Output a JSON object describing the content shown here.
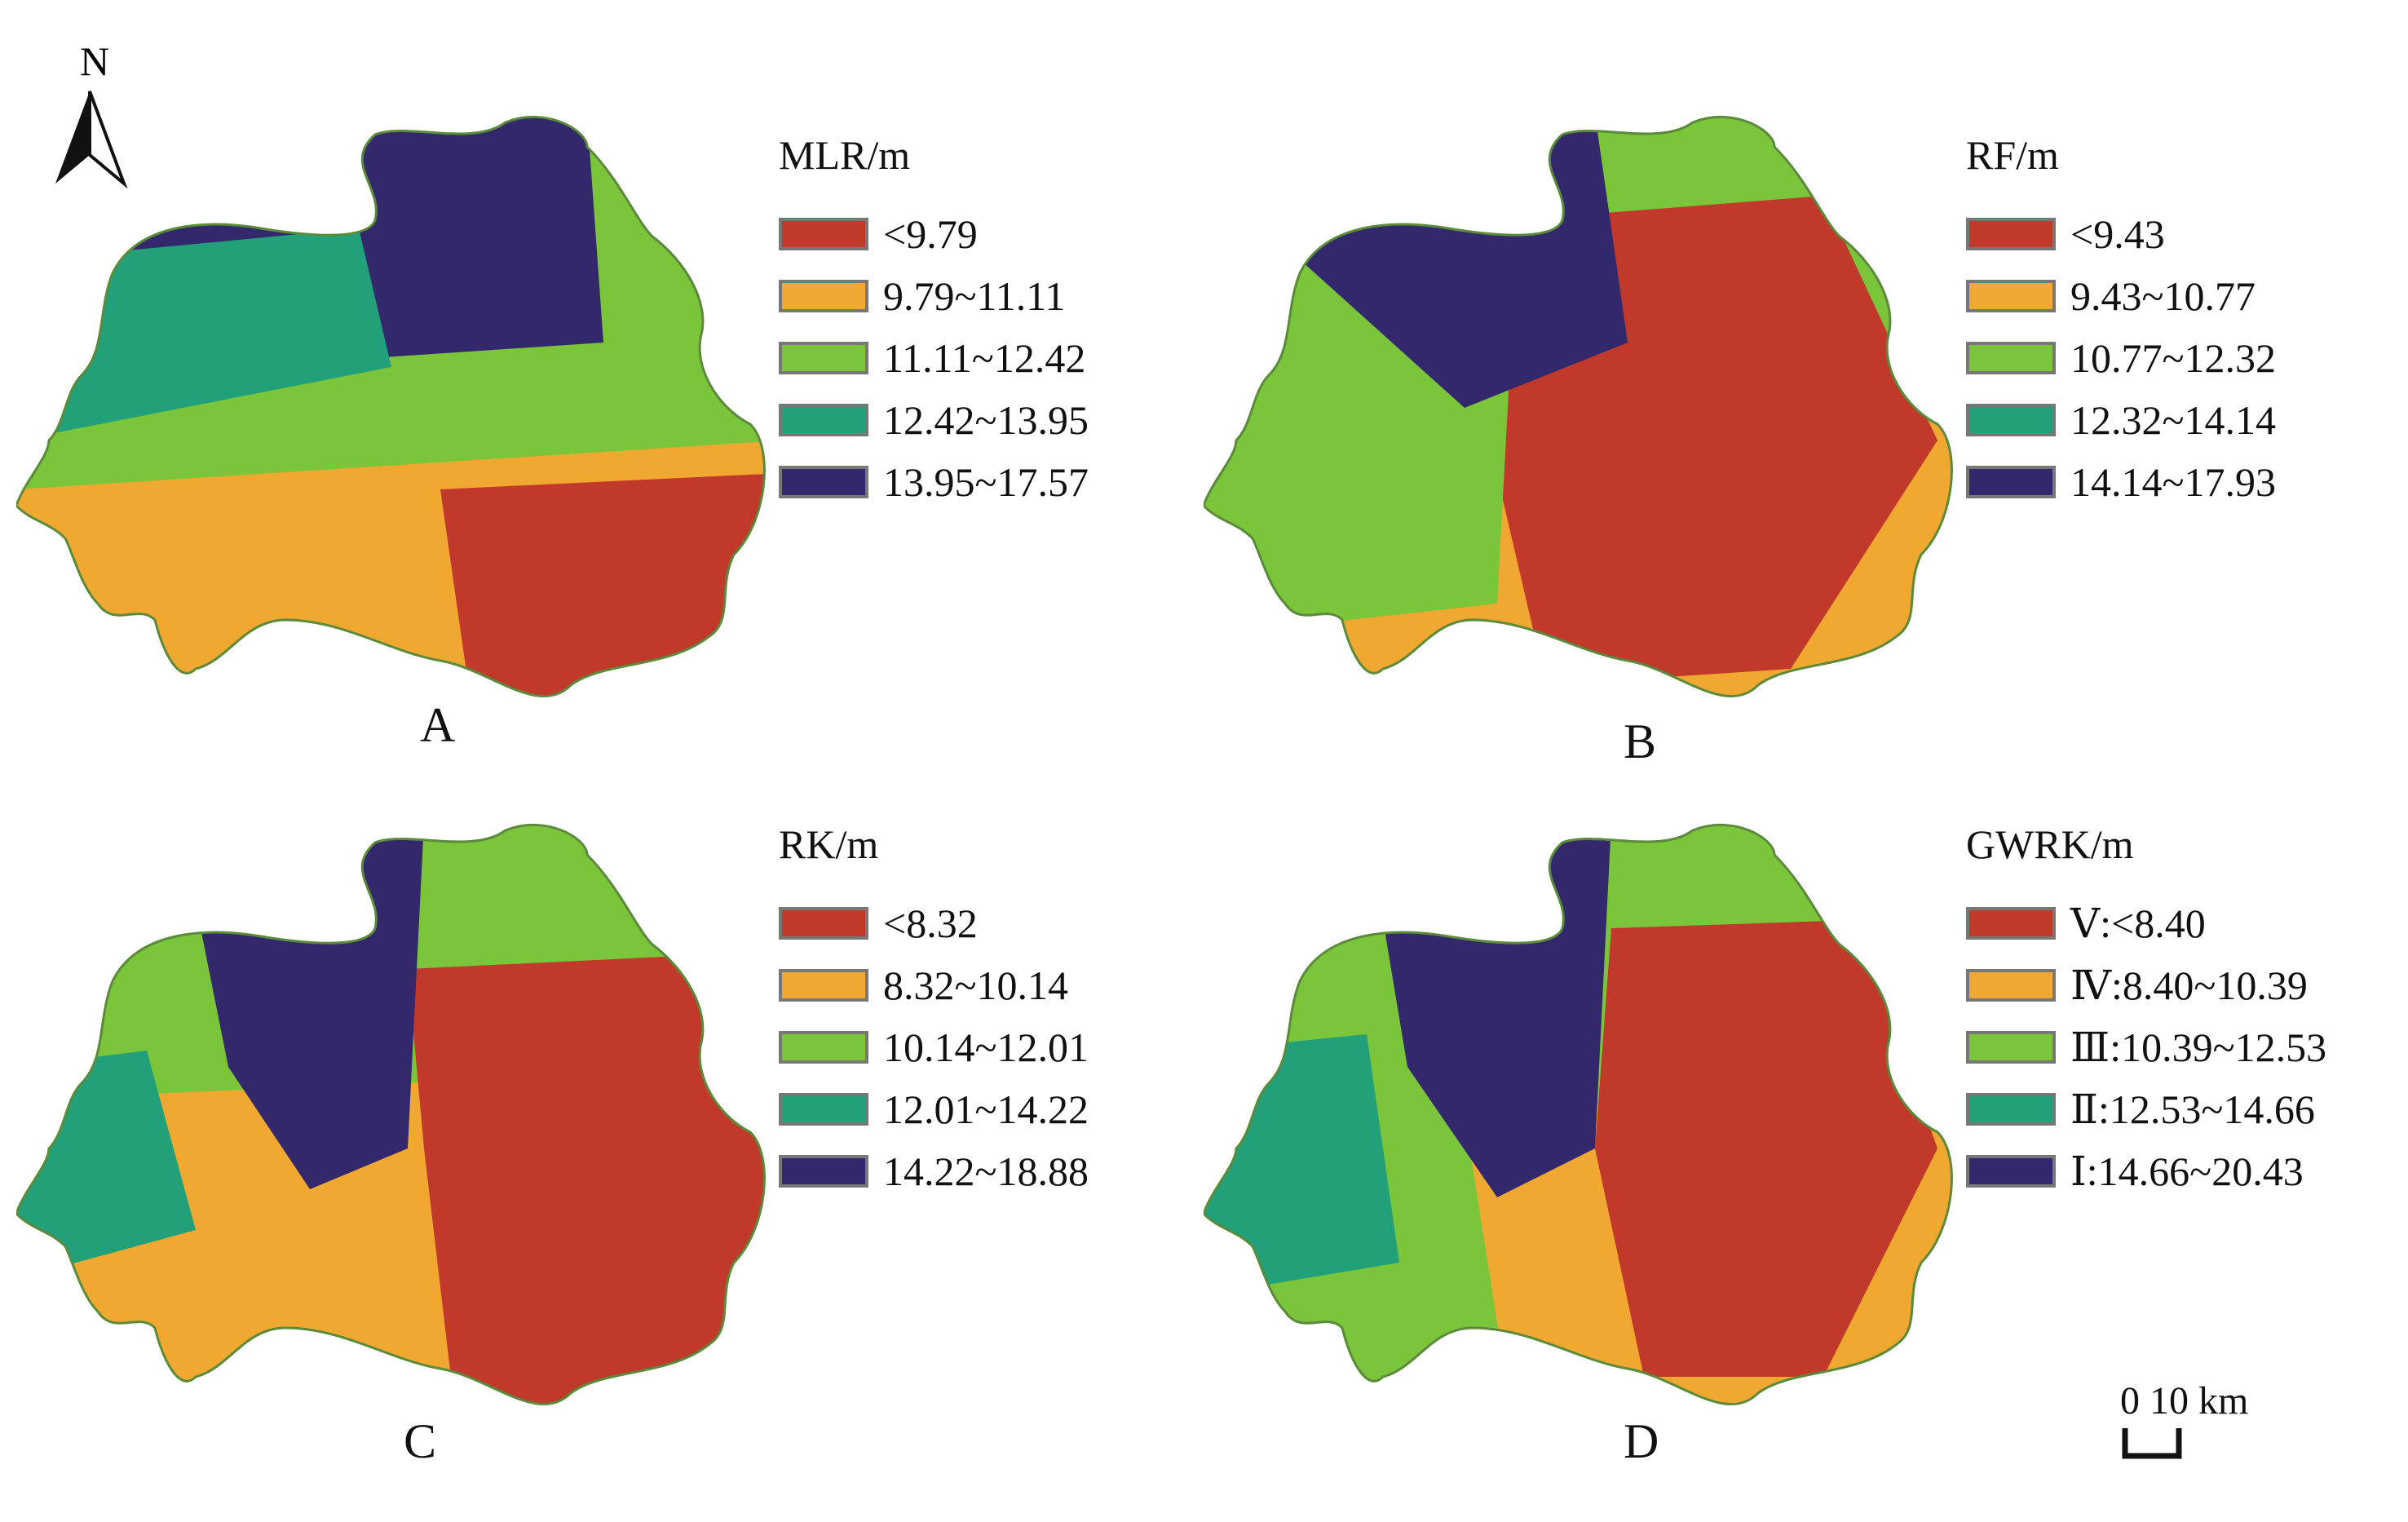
{
  "north_arrow": {
    "label": "N"
  },
  "scale_bar": {
    "label": "0 10 km"
  },
  "colors": {
    "class1": "#c0392b",
    "class2": "#f0a830",
    "class3": "#7bc53b",
    "class4": "#22a07a",
    "class5": "#33286b"
  },
  "panels": [
    {
      "label": "A",
      "legend_title": "MLR/m",
      "classes": [
        "<9.79",
        "9.79~11.11",
        "11.11~12.42",
        "12.42~13.95",
        "13.95~17.57"
      ]
    },
    {
      "label": "B",
      "legend_title": "RF/m",
      "classes": [
        "<9.43",
        "9.43~10.77",
        "10.77~12.32",
        "12.32~14.14",
        "14.14~17.93"
      ]
    },
    {
      "label": "C",
      "legend_title": "RK/m",
      "classes": [
        "<8.32",
        "8.32~10.14",
        "10.14~12.01",
        "12.01~14.22",
        "14.22~18.88"
      ]
    },
    {
      "label": "D",
      "legend_title": "GWRK/m",
      "classes": [
        "Ⅴ:<8.40",
        "Ⅳ:8.40~10.39",
        "Ⅲ:10.39~12.53",
        "Ⅱ:12.53~14.66",
        "Ⅰ:14.66~20.43"
      ]
    }
  ]
}
